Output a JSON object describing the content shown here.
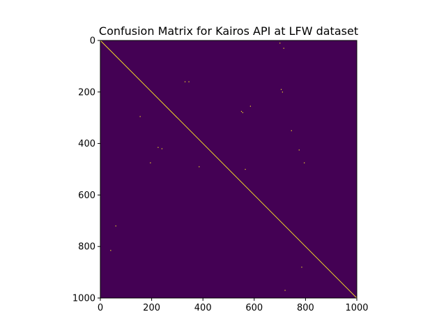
{
  "chart_data": {
    "type": "heatmap",
    "title": "Confusion Matrix for Kairos API at LFW dataset",
    "xlabel": "",
    "ylabel": "",
    "xlim": [
      0,
      1000
    ],
    "ylim": [
      1000,
      0
    ],
    "x_ticks": [
      0,
      200,
      400,
      600,
      800,
      1000
    ],
    "y_ticks": [
      0,
      200,
      400,
      600,
      800,
      1000
    ],
    "x_tick_labels": [
      "0",
      "200",
      "400",
      "600",
      "800",
      "1000"
    ],
    "y_tick_labels": [
      "0",
      "200",
      "400",
      "600",
      "800",
      "1000"
    ],
    "colormap": "viridis",
    "background_color": "#440154",
    "high_color": "#fde725",
    "diagonal": {
      "from": 0,
      "to": 1000,
      "value": "high"
    },
    "off_diagonal_points": [
      {
        "row": 10,
        "col": 700
      },
      {
        "row": 30,
        "col": 715
      },
      {
        "row": 160,
        "col": 330
      },
      {
        "row": 160,
        "col": 345
      },
      {
        "row": 190,
        "col": 705
      },
      {
        "row": 200,
        "col": 710
      },
      {
        "row": 255,
        "col": 585
      },
      {
        "row": 275,
        "col": 550
      },
      {
        "row": 280,
        "col": 555
      },
      {
        "row": 295,
        "col": 155
      },
      {
        "row": 350,
        "col": 745
      },
      {
        "row": 415,
        "col": 225
      },
      {
        "row": 420,
        "col": 240
      },
      {
        "row": 425,
        "col": 775
      },
      {
        "row": 475,
        "col": 195
      },
      {
        "row": 475,
        "col": 795
      },
      {
        "row": 490,
        "col": 385
      },
      {
        "row": 500,
        "col": 565
      },
      {
        "row": 720,
        "col": 60
      },
      {
        "row": 815,
        "col": 40
      },
      {
        "row": 880,
        "col": 785
      },
      {
        "row": 970,
        "col": 720
      }
    ]
  }
}
